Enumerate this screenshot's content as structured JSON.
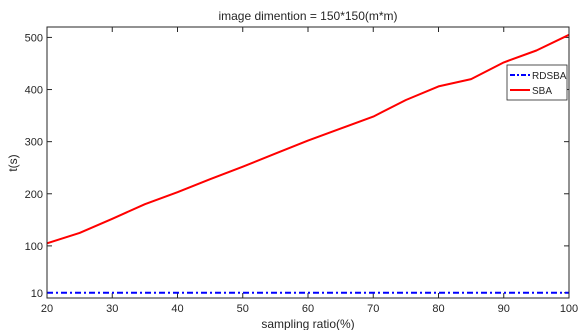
{
  "chart_data": {
    "type": "line",
    "title": "image dimention = 150*150(m*m)",
    "xlabel": "sampling ratio(%)",
    "ylabel": "t(s)",
    "xlim": [
      20,
      100
    ],
    "ylim": [
      0,
      520
    ],
    "xticks": [
      "20",
      "30",
      "40",
      "50",
      "60",
      "70",
      "80",
      "90",
      "100"
    ],
    "yticks": [
      "10",
      "100",
      "200",
      "300",
      "400",
      "500"
    ],
    "grid": false,
    "legend_position": "top-right",
    "x": [
      20,
      25,
      30,
      35,
      40,
      45,
      50,
      55,
      60,
      65,
      70,
      75,
      80,
      85,
      90,
      95,
      100
    ],
    "series": [
      {
        "name": "RDSBA",
        "color": "#0000ff",
        "style": "dash-dot",
        "values": [
          10,
          10,
          10,
          10,
          10,
          10,
          10,
          10,
          10,
          10,
          10,
          10,
          10,
          10,
          10,
          10,
          10
        ]
      },
      {
        "name": "SBA",
        "color": "#ff0000",
        "style": "solid",
        "values": [
          105,
          125,
          152,
          180,
          203,
          228,
          252,
          277,
          302,
          325,
          348,
          380,
          406,
          420,
          452,
          475,
          505
        ]
      }
    ]
  }
}
